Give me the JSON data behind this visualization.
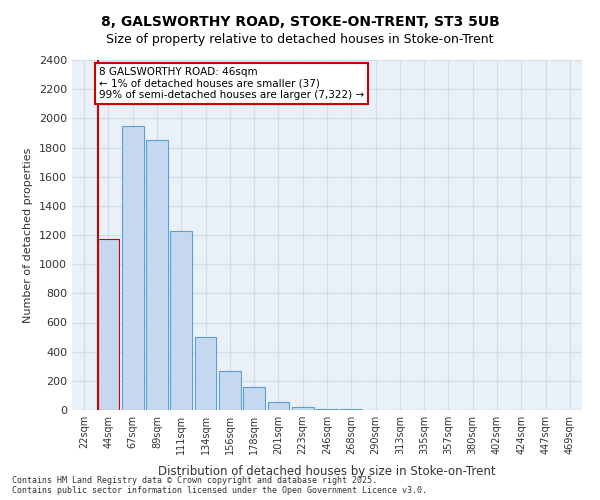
{
  "title_line1": "8, GALSWORTHY ROAD, STOKE-ON-TRENT, ST3 5UB",
  "title_line2": "Size of property relative to detached houses in Stoke-on-Trent",
  "xlabel": "Distribution of detached houses by size in Stoke-on-Trent",
  "ylabel": "Number of detached properties",
  "categories": [
    "22sqm",
    "44sqm",
    "67sqm",
    "89sqm",
    "111sqm",
    "134sqm",
    "156sqm",
    "178sqm",
    "201sqm",
    "223sqm",
    "246sqm",
    "268sqm",
    "290sqm",
    "313sqm",
    "335sqm",
    "357sqm",
    "380sqm",
    "402sqm",
    "424sqm",
    "447sqm",
    "469sqm"
  ],
  "values": [
    0,
    1175,
    1950,
    1850,
    1225,
    500,
    270,
    155,
    55,
    20,
    8,
    4,
    2,
    1,
    1,
    0,
    0,
    0,
    0,
    0,
    0
  ],
  "bar_color": "#c5d8f0",
  "bar_edge_color": "#5a9fd4",
  "highlight_index": 1,
  "highlight_color": "#c5d8f0",
  "highlight_edge_color": "#cc0000",
  "annotation_box_text": "8 GALSWORTHY ROAD: 46sqm\n← 1% of detached houses are smaller (37)\n99% of semi-detached houses are larger (7,322) →",
  "annotation_box_color": "white",
  "annotation_box_edge_color": "#cc0000",
  "vline_color": "#cc0000",
  "vline_x": 1,
  "ylim": [
    0,
    2400
  ],
  "yticks": [
    0,
    200,
    400,
    600,
    800,
    1000,
    1200,
    1400,
    1600,
    1800,
    2000,
    2200,
    2400
  ],
  "grid_color": "#d0dce8",
  "background_color": "#eaf0f8",
  "footer_line1": "Contains HM Land Registry data © Crown copyright and database right 2025.",
  "footer_line2": "Contains public sector information licensed under the Open Government Licence v3.0."
}
